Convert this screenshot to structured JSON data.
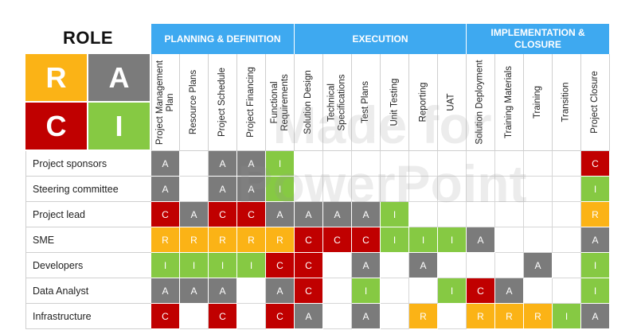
{
  "title": "ROLE",
  "colors": {
    "R": "#fbb316",
    "A": "#7b7b7b",
    "C": "#c00000",
    "I": "#86c943",
    "header": "#3ea9f0"
  },
  "key": [
    {
      "letter": "R",
      "color": "#fbb316"
    },
    {
      "letter": "A",
      "color": "#7b7b7b"
    },
    {
      "letter": "C",
      "color": "#c00000"
    },
    {
      "letter": "I",
      "color": "#86c943"
    }
  ],
  "phases": [
    {
      "label": "PLANNING & DEFINITION",
      "span": 5
    },
    {
      "label": "EXECUTION",
      "span": 6
    },
    {
      "label": "IMPLEMENTATION &\nCLOSURE",
      "span": 5
    }
  ],
  "tasks": [
    "Project Management\nPlan",
    "Resource Plans",
    "Project Schedule",
    "Project Financing",
    "Functional\nRequirements",
    "Solution Design",
    "Technical\nSpecifications",
    "Test Plans",
    "Unit Testing",
    "Reporting",
    "UAT",
    "Solution Deployment",
    "Training Materials",
    "Training",
    "Transition",
    "Project Closure"
  ],
  "watermark": [
    "Made for",
    "PowerPoint"
  ],
  "rows": [
    {
      "role": "Project sponsors",
      "cells": [
        "A",
        "",
        "A",
        "A",
        "I",
        "",
        "",
        "",
        "",
        "",
        "",
        "",
        "",
        "",
        "",
        "C"
      ]
    },
    {
      "role": "Steering committee",
      "cells": [
        "A",
        "",
        "A",
        "A",
        "I",
        "",
        "",
        "",
        "",
        "",
        "",
        "",
        "",
        "",
        "",
        "I"
      ]
    },
    {
      "role": "Project lead",
      "cells": [
        "C",
        "A",
        "C",
        "C",
        "A",
        "A",
        "A",
        "A",
        "I",
        "",
        "",
        "",
        "",
        "",
        "",
        "R"
      ]
    },
    {
      "role": "SME",
      "cells": [
        "R",
        "R",
        "R",
        "R",
        "R",
        "C",
        "C",
        "C",
        "I",
        "I",
        "I",
        "A",
        "",
        "",
        "",
        "A"
      ]
    },
    {
      "role": "Developers",
      "cells": [
        "I",
        "I",
        "I",
        "I",
        "C",
        "C",
        "",
        "A",
        "",
        "A",
        "",
        "",
        "",
        "A",
        "",
        "I"
      ]
    },
    {
      "role": "Data Analyst",
      "cells": [
        "A",
        "A",
        "A",
        "",
        "A",
        "C",
        "",
        "I",
        "",
        "",
        "I",
        "C",
        "A",
        "",
        "",
        "I"
      ]
    },
    {
      "role": "Infrastructure",
      "cells": [
        "C",
        "",
        "C",
        "",
        "C",
        "A",
        "",
        "A",
        "",
        "R",
        "",
        "R",
        "R",
        "R",
        "I",
        "A"
      ]
    }
  ]
}
